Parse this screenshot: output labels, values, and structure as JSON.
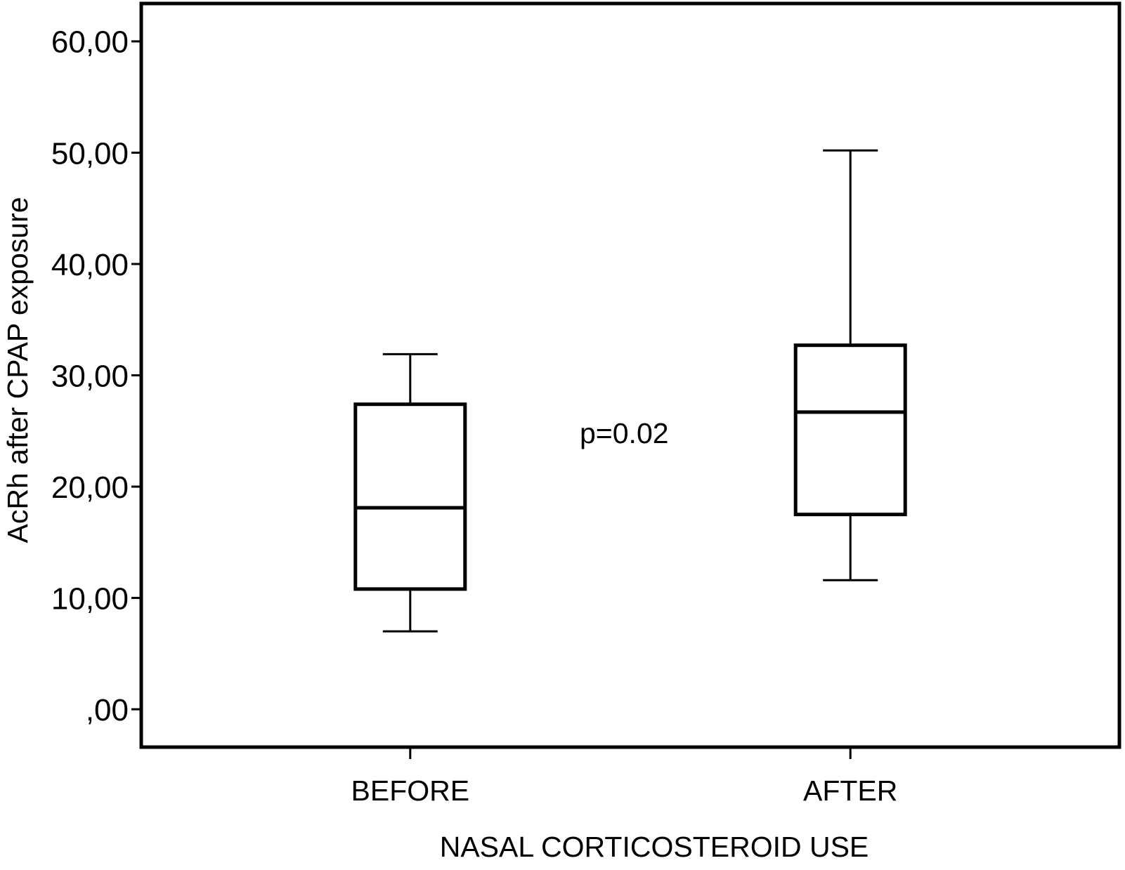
{
  "chart_data": {
    "type": "box",
    "categories": [
      "BEFORE",
      "AFTER"
    ],
    "boxes": [
      {
        "whisker_low": 7.0,
        "q1": 10.8,
        "median": 18.1,
        "q3": 27.4,
        "whisker_high": 31.9
      },
      {
        "whisker_low": 11.6,
        "q1": 17.5,
        "median": 26.7,
        "q3": 32.7,
        "whisker_high": 50.2
      }
    ],
    "xlabel": "NASAL CORTICOSTEROID USE",
    "ylabel": "AcRh after CPAP exposure",
    "yticks": [
      0,
      10,
      20,
      30,
      40,
      50,
      60
    ],
    "yticklabels": [
      ",00",
      "10,00",
      "20,00",
      "30,00",
      "40,00",
      "50,00",
      "60,00"
    ],
    "ylim": [
      -3.4,
      63.4
    ],
    "grid": false,
    "legend": false,
    "annotations": [
      "p=0.02"
    ]
  },
  "colors": {
    "background": "#ffffff",
    "ink": "#000000"
  }
}
